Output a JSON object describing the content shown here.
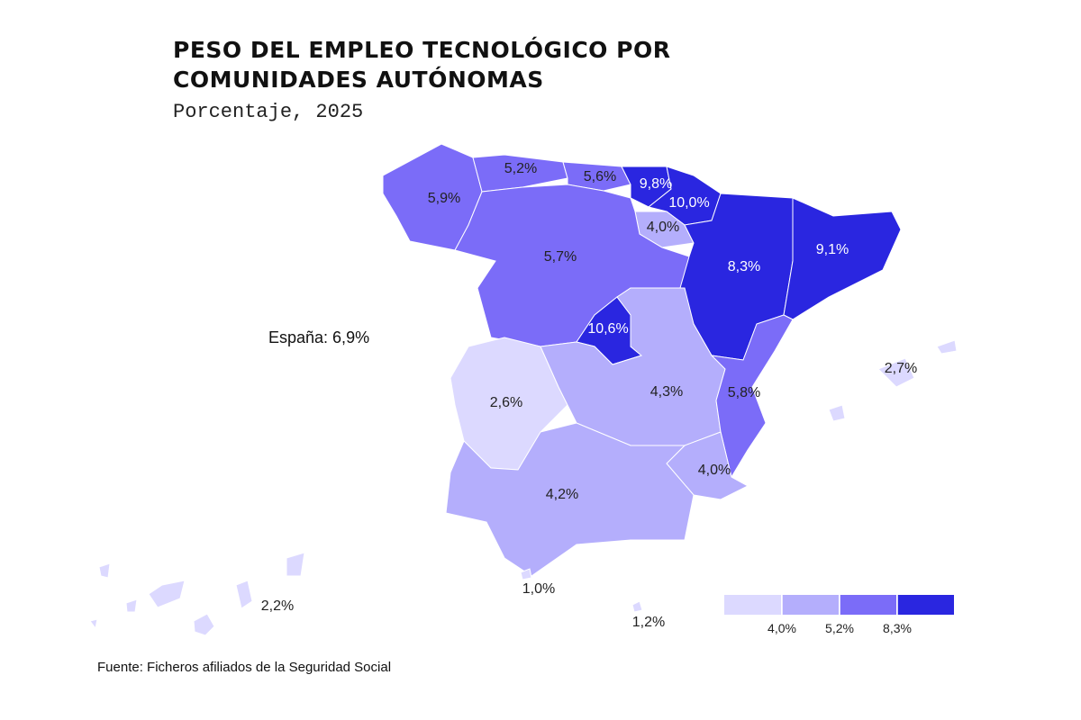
{
  "chart_data": {
    "type": "choropleth",
    "title": [
      "PESO DEL EMPLEO TECNOLÓGICO POR",
      "COMUNIDADES AUTÓNOMAS"
    ],
    "subtitle": "Porcentaje, 2025",
    "annotation": {
      "value": 6.9,
      "label": "España: 6,9%"
    },
    "source": "Fuente: Ficheros afiliados de la Seguridad Social",
    "values": [
      5.9,
      5.2,
      5.6,
      9.8,
      10.0,
      4.0,
      5.7,
      8.3,
      9.1,
      10.6,
      2.6,
      4.3,
      5.8,
      2.7,
      4.0,
      4.2,
      1.0,
      1.2,
      2.2
    ],
    "value_labels": [
      "5,9%",
      "5,2%",
      "5,6%",
      "9,8%",
      "10,0%",
      "4,0%",
      "5,7%",
      "8,3%",
      "9,1%",
      "10,6%",
      "2,6%",
      "4,3%",
      "5,8%",
      "2,7%",
      "4,0%",
      "4,2%",
      "1,0%",
      "1,2%",
      "2,2%"
    ],
    "legend": {
      "thresholds": [
        {
          "value": 4.0,
          "label": "4,0%"
        },
        {
          "value": 5.2,
          "label": "5,2%"
        },
        {
          "value": 8.3,
          "label": "8,3%"
        }
      ],
      "colors": [
        "#dcd9ff",
        "#b4aefc",
        "#7b6cf8",
        "#2a26e0"
      ]
    }
  }
}
